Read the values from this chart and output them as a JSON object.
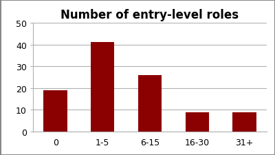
{
  "title": "Number of entry-level roles",
  "categories": [
    "0",
    "1-5",
    "6-15",
    "16-30",
    "31+"
  ],
  "values": [
    19,
    41,
    26,
    9,
    9
  ],
  "bar_color": "#8B0000",
  "ylim": [
    0,
    50
  ],
  "yticks": [
    0,
    10,
    20,
    30,
    40,
    50
  ],
  "title_fontsize": 12,
  "tick_fontsize": 9,
  "background_color": "#ffffff",
  "grid_color": "#b0b0b0",
  "figure_border_color": "#888888"
}
